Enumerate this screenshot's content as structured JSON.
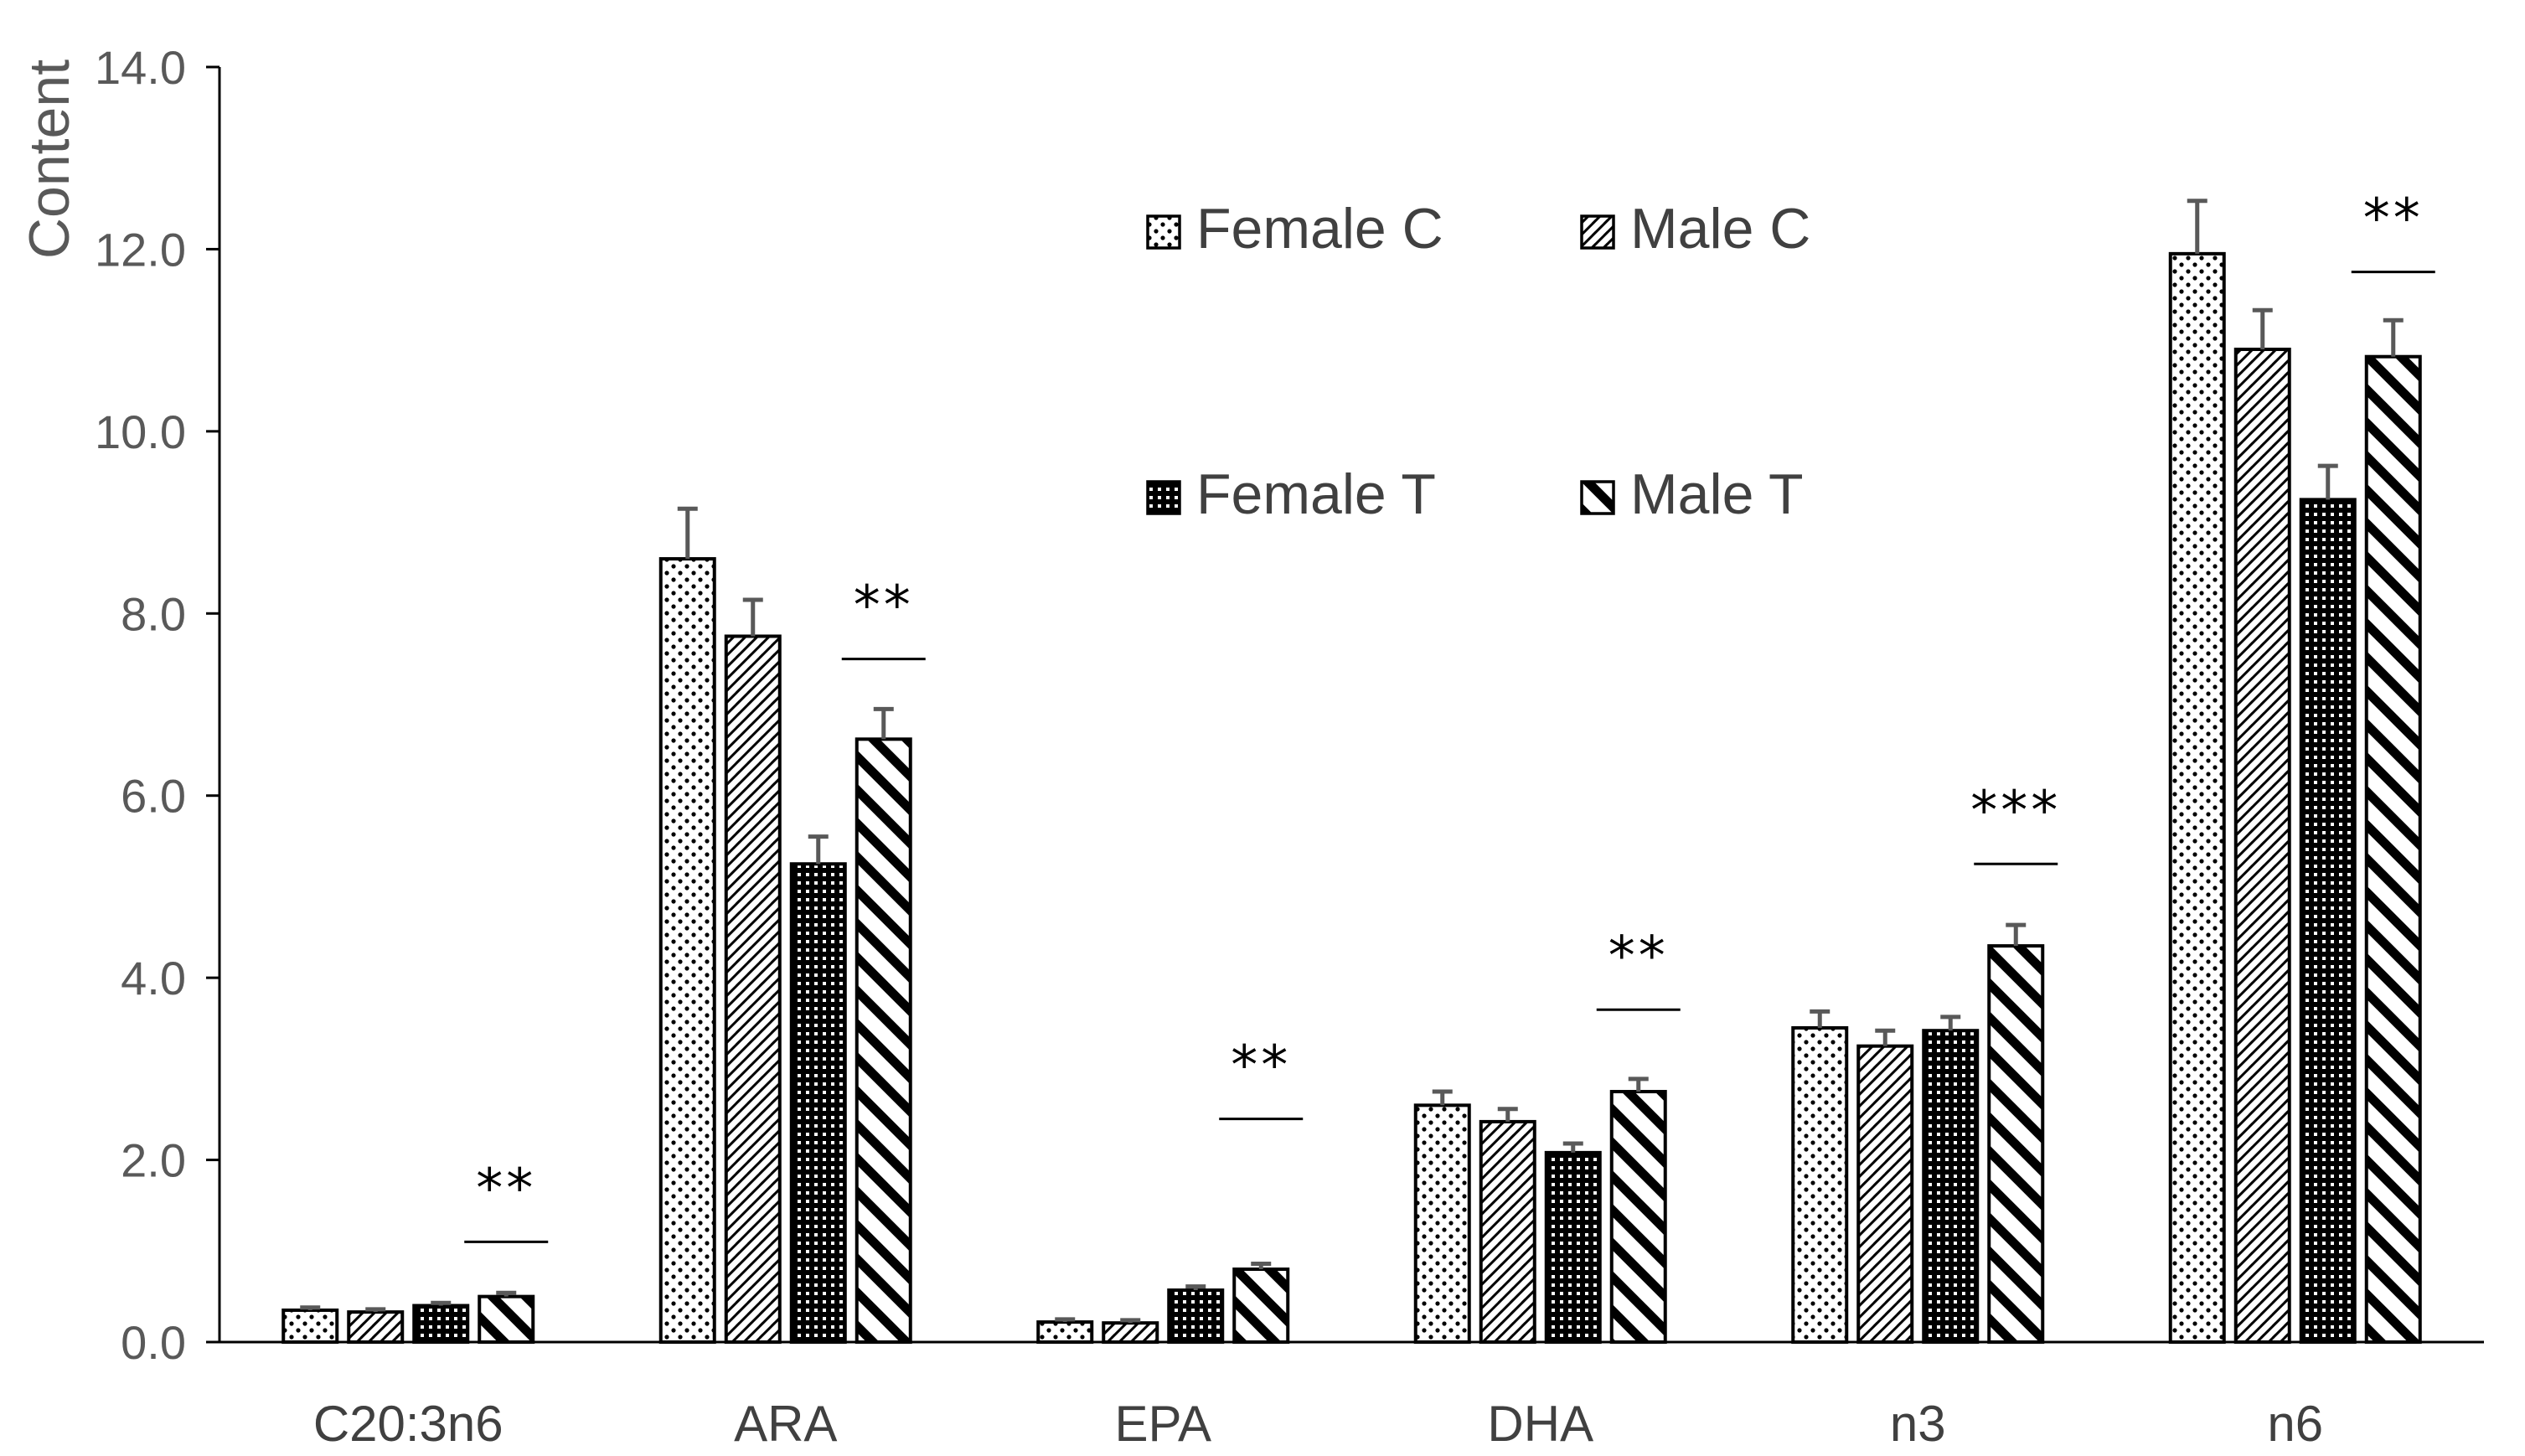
{
  "chart_data": {
    "type": "bar",
    "title": "",
    "xlabel": "",
    "ylabel": "Content",
    "ylim": [
      0,
      14
    ],
    "yticks": [
      0.0,
      2.0,
      4.0,
      6.0,
      8.0,
      10.0,
      12.0,
      14.0
    ],
    "ytick_labels": [
      "0.0",
      "2.0",
      "4.0",
      "6.0",
      "8.0",
      "10.0",
      "12.0",
      "14.0"
    ],
    "grid": false,
    "legend_position": "top-center",
    "categories": [
      "C20:3n6",
      "ARA",
      "EPA",
      "DHA",
      "n3",
      "n6"
    ],
    "series": [
      {
        "name": "Female C",
        "pattern": "dots",
        "values": [
          0.35,
          8.6,
          0.22,
          2.6,
          3.45,
          11.95
        ],
        "errors": [
          0.03,
          0.55,
          0.03,
          0.15,
          0.18,
          0.58
        ]
      },
      {
        "name": "Male C",
        "pattern": "light-diagonal",
        "values": [
          0.33,
          7.75,
          0.21,
          2.42,
          3.25,
          10.9
        ],
        "errors": [
          0.03,
          0.4,
          0.03,
          0.14,
          0.17,
          0.43
        ]
      },
      {
        "name": "Female T",
        "pattern": "dense-dots",
        "values": [
          0.4,
          5.25,
          0.57,
          2.08,
          3.42,
          9.25
        ],
        "errors": [
          0.03,
          0.3,
          0.04,
          0.1,
          0.15,
          0.37
        ]
      },
      {
        "name": "Male T",
        "pattern": "wide-diagonal",
        "values": [
          0.5,
          6.62,
          0.8,
          2.75,
          4.35,
          10.82
        ],
        "errors": [
          0.04,
          0.33,
          0.06,
          0.14,
          0.23,
          0.4
        ]
      }
    ],
    "annotations": [
      {
        "category": "C20:3n6",
        "text": "**",
        "y": 1.1
      },
      {
        "category": "ARA",
        "text": "**",
        "y": 7.5
      },
      {
        "category": "EPA",
        "text": "**",
        "y": 2.45
      },
      {
        "category": "DHA",
        "text": "**",
        "y": 3.65
      },
      {
        "category": "n3",
        "text": "***",
        "y": 5.25
      },
      {
        "category": "n6",
        "text": "**",
        "y": 11.75
      }
    ]
  },
  "colors": {
    "axis": "#000000",
    "bar_outline": "#000000",
    "bar_fill": "#ffffff",
    "tick_text": "#595959",
    "error_bar": "#595959"
  }
}
